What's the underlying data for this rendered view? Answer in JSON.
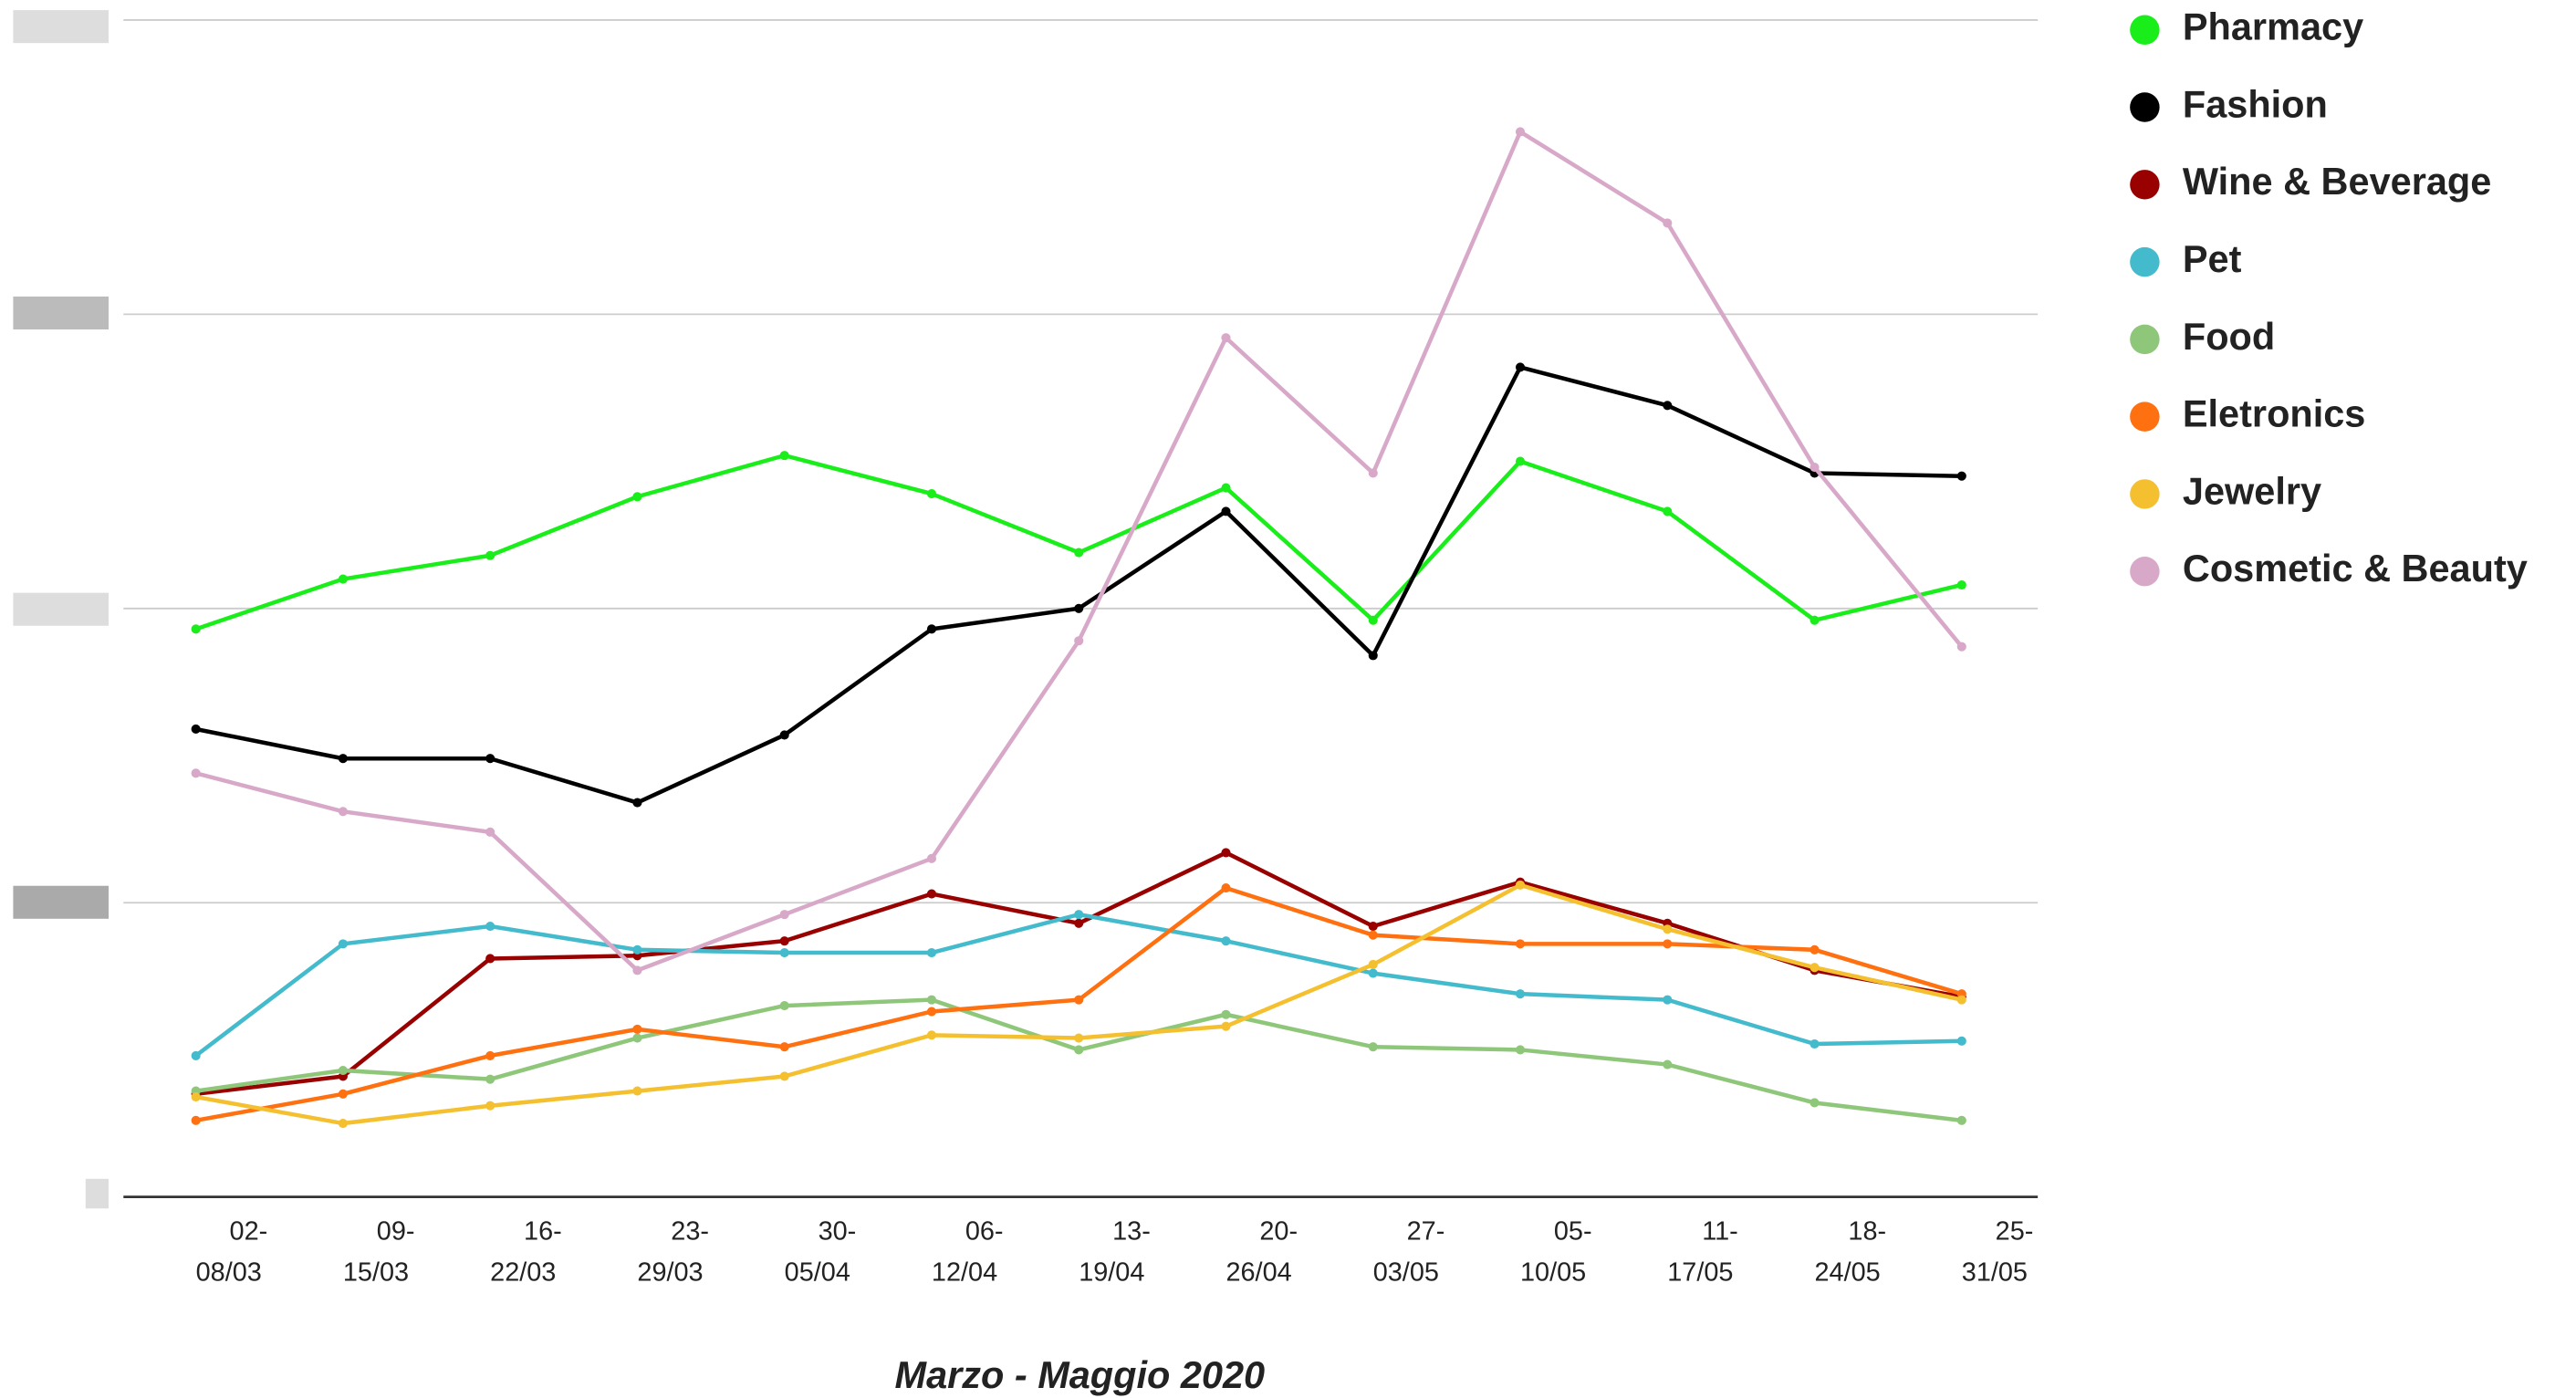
{
  "chart_data": {
    "type": "line",
    "xlabel": "Marzo - Maggio 2020",
    "categories": [
      [
        "02-",
        "08/03"
      ],
      [
        "09-",
        "15/03"
      ],
      [
        "16-",
        "22/03"
      ],
      [
        "23-",
        "29/03"
      ],
      [
        "30-",
        "05/04"
      ],
      [
        "06-",
        "12/04"
      ],
      [
        "13-",
        "19/04"
      ],
      [
        "20-",
        "26/04"
      ],
      [
        "27-",
        "03/05"
      ],
      [
        "05-",
        "10/05"
      ],
      [
        "11-",
        "17/05"
      ],
      [
        "18-",
        "24/05"
      ],
      [
        "25-",
        "31/05"
      ]
    ],
    "ylim": [
      0,
      4
    ],
    "yticks": [
      0,
      1,
      2,
      3,
      4
    ],
    "grid": true,
    "legend": "right",
    "series": [
      {
        "name": "Pharmacy",
        "color": "#1aee1a",
        "values": [
          1.93,
          2.1,
          2.18,
          2.38,
          2.52,
          2.39,
          2.19,
          2.41,
          1.96,
          2.5,
          2.33,
          1.96,
          2.08
        ]
      },
      {
        "name": "Fashion",
        "color": "#000000",
        "values": [
          1.59,
          1.49,
          1.49,
          1.34,
          1.57,
          1.93,
          2.0,
          2.33,
          1.84,
          2.82,
          2.69,
          2.46,
          2.45
        ]
      },
      {
        "name": "Wine & Beverage",
        "color": "#990000",
        "values": [
          0.35,
          0.41,
          0.81,
          0.82,
          0.87,
          1.03,
          0.93,
          1.17,
          0.92,
          1.07,
          0.93,
          0.77,
          0.68
        ]
      },
      {
        "name": "Pet",
        "color": "#44bbcc",
        "values": [
          0.48,
          0.86,
          0.92,
          0.84,
          0.83,
          0.83,
          0.96,
          0.87,
          0.76,
          0.69,
          0.67,
          0.52,
          0.53
        ]
      },
      {
        "name": "Food",
        "color": "#8fc77a",
        "values": [
          0.36,
          0.43,
          0.4,
          0.54,
          0.65,
          0.67,
          0.5,
          0.62,
          0.51,
          0.5,
          0.45,
          0.32,
          0.26
        ]
      },
      {
        "name": "Eletronics",
        "color": "#ff7010",
        "values": [
          0.26,
          0.35,
          0.48,
          0.57,
          0.51,
          0.63,
          0.67,
          1.05,
          0.89,
          0.86,
          0.86,
          0.84,
          0.69
        ]
      },
      {
        "name": "Jewelry",
        "color": "#f5c030",
        "values": [
          0.34,
          0.25,
          0.31,
          0.36,
          0.41,
          0.55,
          0.54,
          0.58,
          0.79,
          1.06,
          0.91,
          0.78,
          0.67
        ]
      },
      {
        "name": "Cosmetic & Beauty",
        "color": "#d8a8c8",
        "values": [
          1.44,
          1.31,
          1.24,
          0.77,
          0.96,
          1.15,
          1.89,
          2.92,
          2.46,
          3.62,
          3.31,
          2.48,
          1.87
        ]
      }
    ]
  }
}
